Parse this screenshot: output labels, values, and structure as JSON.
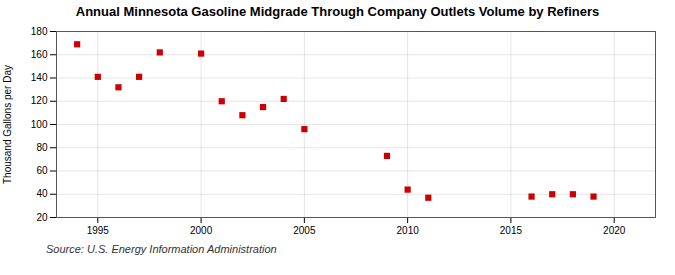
{
  "chart_data": {
    "type": "scatter",
    "title": "Annual Minnesota Gasoline Midgrade Through Company Outlets Volume by Refiners",
    "ylabel": "Thousand Gallons per Day",
    "source": "Source: U.S. Energy Information Administration",
    "x": [
      1994,
      1995,
      1996,
      1997,
      1998,
      2000,
      2001,
      2002,
      2003,
      2004,
      2005,
      2009,
      2010,
      2011,
      2016,
      2017,
      2018,
      2019
    ],
    "values": [
      169,
      141,
      132,
      141,
      162,
      161,
      120,
      108,
      115,
      122,
      96,
      73,
      44,
      37,
      38,
      40,
      40,
      38
    ],
    "color": "#cc0000",
    "marker": "square",
    "xlim": [
      1993,
      2022
    ],
    "ylim": [
      20,
      180
    ],
    "xticks": [
      1995,
      2000,
      2005,
      2010,
      2015,
      2020
    ],
    "yticks": [
      20,
      40,
      60,
      80,
      100,
      120,
      140,
      160,
      180
    ],
    "grid": true
  }
}
